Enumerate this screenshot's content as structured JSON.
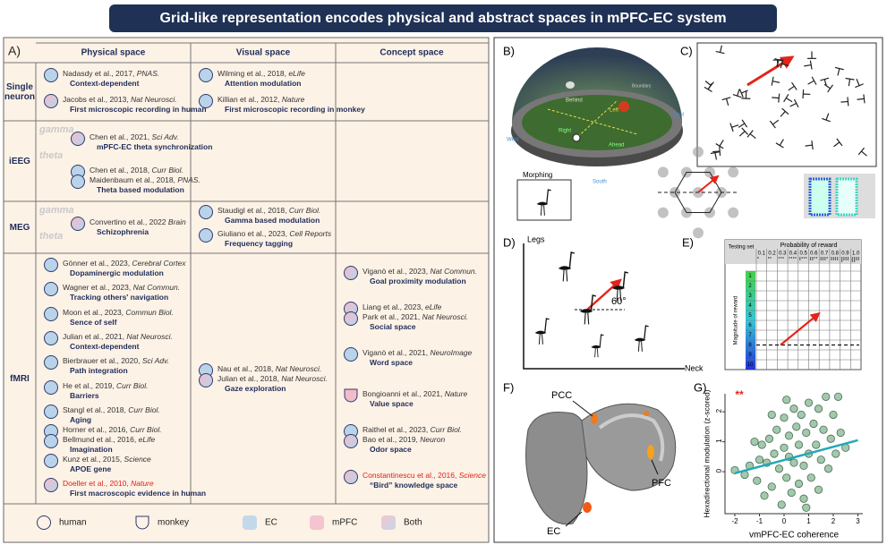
{
  "title": "Grid-like representation encodes physical and abstract spaces  in mPFC-EC system",
  "panel_a": {
    "label": "A)",
    "columns": [
      "Physical space",
      "Visual space",
      "Concept space"
    ],
    "fills": {
      "blue": [
        "#b9d3ea"
      ],
      "pink": [
        "#f2bccb"
      ],
      "mix": [
        "#f2bccb",
        "#b9d3ea"
      ]
    },
    "rows": [
      {
        "name": "Single neuron",
        "cells": [
          [
            {
              "cites": [
                {
                  "text": "Nadasdy et al., 2017,",
                  "journal": "PNAS.",
                  "shape": "circle",
                  "fill": "blue"
                }
              ],
              "desc": "Context-dependent"
            },
            {
              "cites": [
                {
                  "text": "Jacobs et al., 2013,",
                  "journal": "Nat Neurosci.",
                  "shape": "circle",
                  "fill": "mix"
                }
              ],
              "desc": "First microscopic recording in human"
            }
          ],
          [
            {
              "cites": [
                {
                  "text": "Wilming et al., 2018,",
                  "journal": "eLife",
                  "shape": "circle",
                  "fill": "blue"
                }
              ],
              "desc": "Attention modulation"
            },
            {
              "cites": [
                {
                  "text": "Killian et al., 2012,",
                  "journal": "Nature",
                  "shape": "circle",
                  "fill": "blue"
                }
              ],
              "desc": "First microscopic recording in monkey"
            }
          ],
          []
        ]
      },
      {
        "name": "iEEG",
        "bands": [
          "gamma",
          "theta"
        ],
        "cells": [
          [
            {
              "cites": [
                {
                  "text": "Chen et al., 2021,",
                  "journal": "Sci Adv.",
                  "shape": "circle",
                  "fill": "mix"
                }
              ],
              "desc": "mPFC-EC theta synchronization"
            },
            {
              "cites": [
                {
                  "text": "Chen et al., 2018,",
                  "journal": "Curr Biol.",
                  "shape": "circle",
                  "fill": "blue"
                },
                {
                  "text": "Maidenbaum et al., 2018,",
                  "journal": "PNAS.",
                  "shape": "circle",
                  "fill": "blue"
                }
              ],
              "desc": "Theta based modulation"
            }
          ],
          [],
          []
        ]
      },
      {
        "name": "MEG",
        "bands": [
          "gamma",
          "theta"
        ],
        "cells": [
          [
            {
              "cites": [
                {
                  "text": "Convertino et al., 2022",
                  "journal": "Brain",
                  "shape": "circle",
                  "fill": "mix"
                }
              ],
              "desc": "Schizophrenia"
            }
          ],
          [
            {
              "cites": [
                {
                  "text": "Staudigl et al., 2018,",
                  "journal": "Curr Biol.",
                  "shape": "circle",
                  "fill": "blue"
                }
              ],
              "desc": "Gamma based modulation"
            },
            {
              "cites": [
                {
                  "text": "Giuliano et al., 2023,",
                  "journal": "Cell Reports",
                  "shape": "circle",
                  "fill": "blue"
                }
              ],
              "desc": "Frequency tagging"
            }
          ],
          []
        ]
      },
      {
        "name": "fMRI",
        "cells": [
          [
            {
              "cites": [
                {
                  "text": "Gönner et al., 2023,",
                  "journal": "Cerebral Cortex",
                  "shape": "circle",
                  "fill": "blue"
                }
              ],
              "desc": "Dopaminergic modulation"
            },
            {
              "cites": [
                {
                  "text": "Wagner et al., 2023,",
                  "journal": "Nat Commun.",
                  "shape": "circle",
                  "fill": "blue"
                }
              ],
              "desc": "Tracking others' navigation"
            },
            {
              "cites": [
                {
                  "text": "Moon et al., 2023,",
                  "journal": "Commun Biol.",
                  "shape": "circle",
                  "fill": "blue"
                }
              ],
              "desc": "Sence of self"
            },
            {
              "cites": [
                {
                  "text": "Julian et al., 2021,",
                  "journal": "Nat Neurosci.",
                  "shape": "circle",
                  "fill": "blue"
                }
              ],
              "desc": "Context-dependent"
            },
            {
              "cites": [
                {
                  "text": "Bierbrauer et al., 2020,",
                  "journal": "Sci Adv.",
                  "shape": "circle",
                  "fill": "blue"
                }
              ],
              "desc": "Path integration"
            },
            {
              "cites": [
                {
                  "text": "He et al., 2019,",
                  "journal": "Curr Biol.",
                  "shape": "circle",
                  "fill": "blue"
                }
              ],
              "desc": "Barriers"
            },
            {
              "cites": [
                {
                  "text": "Stangl et al., 2018,",
                  "journal": "Curr Biol.",
                  "shape": "circle",
                  "fill": "blue"
                }
              ],
              "desc": "Aging"
            },
            {
              "cites": [
                {
                  "text": "Horner et al., 2016,",
                  "journal": "Curr Biol.",
                  "shape": "circle",
                  "fill": "blue"
                },
                {
                  "text": "Bellmund et al., 2016,",
                  "journal": "eLife",
                  "shape": "circle",
                  "fill": "blue"
                }
              ],
              "desc": "Imagination"
            },
            {
              "cites": [
                {
                  "text": "Kunz et al., 2015,",
                  "journal": "Science",
                  "shape": "circle",
                  "fill": "blue"
                }
              ],
              "desc": "APOE gene"
            },
            {
              "cites": [
                {
                  "text": "Doeller et al., 2010,",
                  "journal": "Nature",
                  "shape": "circle",
                  "fill": "mix",
                  "highlight": true
                }
              ],
              "desc": "First macroscopic evidence in human"
            }
          ],
          [
            {
              "cites": [
                {
                  "text": "Nau et al., 2018,",
                  "journal": "Nat Neurosci.",
                  "shape": "circle",
                  "fill": "blue"
                },
                {
                  "text": "Julian et al., 2018,",
                  "journal": "Nat Neurosci.",
                  "shape": "circle",
                  "fill": "mix"
                }
              ],
              "desc": "Gaze exploration"
            }
          ],
          [
            {
              "cites": [
                {
                  "text": "Viganò et al., 2023,",
                  "journal": "Nat Commun.",
                  "shape": "circle",
                  "fill": "mix"
                }
              ],
              "desc": "Goal proximity modulation"
            },
            {
              "cites": [
                {
                  "text": "Liang et al., 2023,",
                  "journal": "eLife",
                  "shape": "circle",
                  "fill": "mix"
                },
                {
                  "text": "Park et al., 2021,",
                  "journal": "Nat Neurosci.",
                  "shape": "circle",
                  "fill": "mix"
                }
              ],
              "desc": "Social space"
            },
            {
              "cites": [
                {
                  "text": "Viganò et al., 2021,",
                  "journal": "NeuroImage",
                  "shape": "circle",
                  "fill": "blue"
                }
              ],
              "desc": "Word space"
            },
            {
              "cites": [
                {
                  "text": "Bongioanni et al., 2021,",
                  "journal": "Nature",
                  "shape": "shield",
                  "fill": "pink"
                }
              ],
              "desc": "Value space"
            },
            {
              "cites": [
                {
                  "text": "Raithel et al., 2023,",
                  "journal": "Curr Biol.",
                  "shape": "circle",
                  "fill": "blue"
                },
                {
                  "text": "Bao et al., 2019,",
                  "journal": "Neuron",
                  "shape": "circle",
                  "fill": "mix"
                }
              ],
              "desc": "Odor space"
            },
            {
              "cites": [
                {
                  "text": "Constantinescu et al., 2016,",
                  "journal": "Science",
                  "shape": "circle",
                  "fill": "mix",
                  "highlight": true
                }
              ],
              "desc": "“Bird”  knowledge space"
            }
          ]
        ]
      }
    ],
    "legend": [
      {
        "label": "human",
        "shape": "circle"
      },
      {
        "label": "monkey",
        "shape": "shield"
      },
      {
        "label": "EC",
        "fill": "blue"
      },
      {
        "label": "mPFC",
        "fill": "pink"
      },
      {
        "label": "Both",
        "fill": "mix"
      }
    ]
  },
  "panel_b": {
    "label": "B)",
    "texts": [
      "Behind",
      "Left",
      "Right",
      "Ahead",
      "Boundary",
      "West",
      "East",
      "South",
      "Morphing"
    ]
  },
  "panel_c": {
    "label": "C)"
  },
  "panel_d": {
    "label": "D)",
    "y_axis": "Legs",
    "x_axis": "Neck",
    "angle": "60°"
  },
  "panel_e": {
    "label": "E)",
    "corner": "Testing set",
    "column_title": "Probability of reward",
    "probabilities": [
      "0.1",
      "0.2",
      "0.3",
      "0.4",
      "0.5",
      "0.6",
      "0.7",
      "0.8",
      "0.9",
      "1.0"
    ],
    "row_title": "Magnitude of reward",
    "magnitudes": [
      1,
      2,
      3,
      4,
      5,
      6,
      7,
      8,
      9,
      10
    ]
  },
  "panel_f": {
    "label": "F)",
    "regions": [
      "PCC",
      "PFC",
      "EC"
    ]
  },
  "panel_g": {
    "label": "G)",
    "type": "scatter",
    "significance": "**",
    "xlabel": "vmPFC-EC coherence",
    "ylabel": "Hexadirectional modulation (z-scored)",
    "x": [
      -2,
      -1.4,
      -1.1,
      -1,
      -0.9,
      -0.8,
      -0.7,
      -0.6,
      -0.5,
      -0.4,
      -0.3,
      -0.2,
      -0.1,
      0,
      0,
      0.1,
      0.2,
      0.2,
      0.3,
      0.4,
      0.4,
      0.5,
      0.6,
      0.6,
      0.7,
      0.8,
      0.8,
      0.9,
      1,
      1,
      1.1,
      1.2,
      1.3,
      1.4,
      1.4,
      1.5,
      1.6,
      1.7,
      1.8,
      1.9,
      2,
      2.1,
      2.2,
      2.3,
      -1.2,
      -0.5,
      0.1,
      0.9,
      -1.6,
      2.5
    ],
    "y": [
      0.05,
      0.2,
      -0.3,
      0.4,
      0.9,
      -0.8,
      0.3,
      1.1,
      -0.5,
      0.6,
      1.4,
      0.1,
      -1.1,
      0.8,
      1.8,
      -0.2,
      0.5,
      1.2,
      -0.7,
      2.1,
      0.3,
      1.5,
      -0.4,
      0.9,
      1.9,
      0.2,
      -0.9,
      1.3,
      0.6,
      2.3,
      -0.2,
      1.6,
      0.9,
      2.1,
      -0.6,
      0.4,
      1.4,
      2.5,
      0.1,
      1.1,
      1.9,
      0.6,
      2.5,
      1.3,
      1.0,
      1.9,
      2.4,
      -1.2,
      -0.1,
      0.8
    ],
    "fit": {
      "x": [
        -2,
        3
      ],
      "y": [
        -0.05,
        1.05
      ]
    },
    "color": "#a3c9ac",
    "fit_color": "#23a9b8",
    "xlim": [
      -2.4,
      3.2
    ],
    "ylim": [
      -1.4,
      2.6
    ],
    "xticks": [
      -2,
      -1,
      0,
      1,
      2,
      3
    ],
    "yticks": [
      0,
      1,
      2
    ]
  }
}
